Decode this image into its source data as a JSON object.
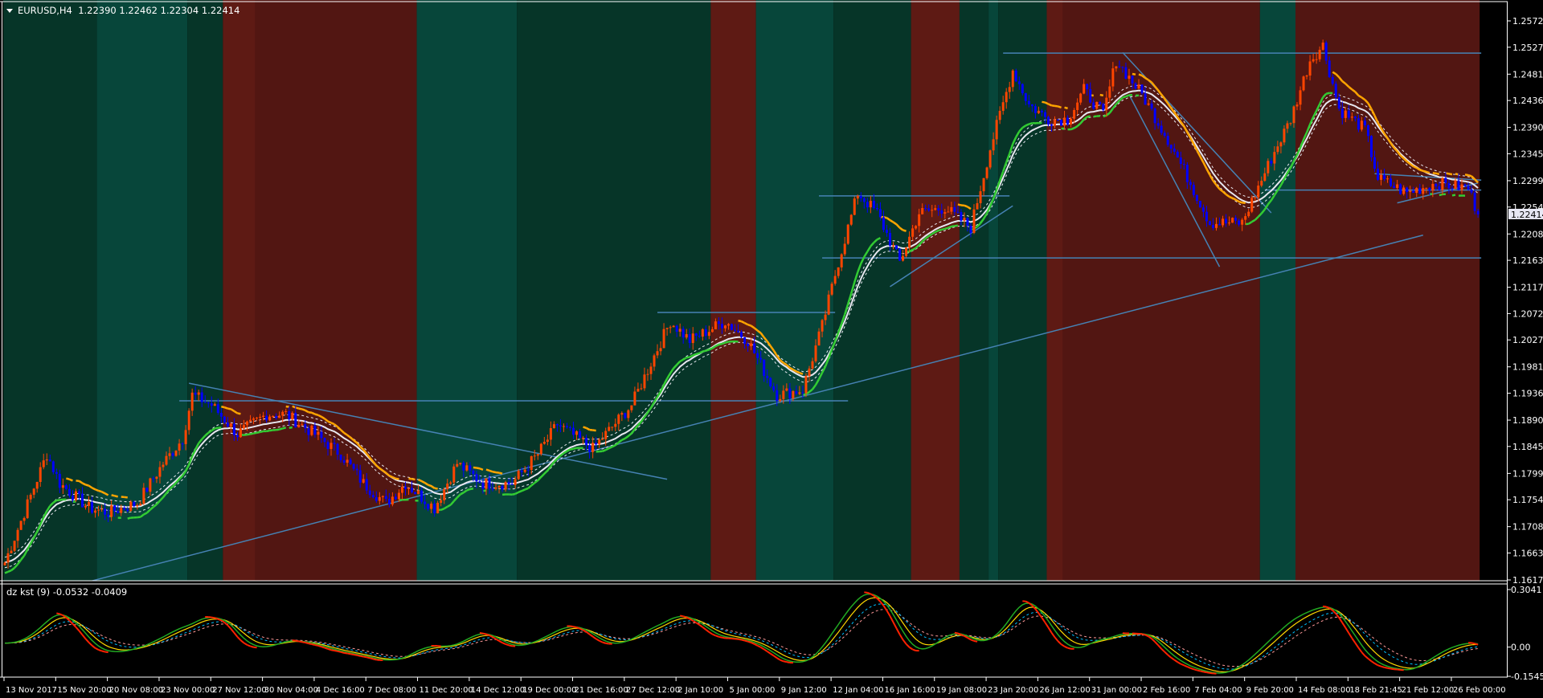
{
  "header": {
    "symbol_timeframe": "EURUSD,H4",
    "open": "1.22390",
    "high": "1.22462",
    "low": "1.22304",
    "close": "1.22414"
  },
  "indicator": {
    "name": "dz kst (9)",
    "value1": "-0.0532",
    "value2": "-0.0409",
    "axis_labels": [
      "0.3041",
      "0.00",
      "-0.1545"
    ],
    "ylim": [
      -0.1545,
      0.3041
    ]
  },
  "colors": {
    "bull_candle": "#ff4500",
    "bear_candle": "#0000ff",
    "bull_zone": "#07463a",
    "neutral_zone": "#063528",
    "bear_zone": "#5e1a14",
    "bear_zone_dark": "#521612",
    "trendline": "#4682b4",
    "ma": "#e8e8f0",
    "trail_up": "#33cc33",
    "trail_down": "#ffa500",
    "kst_green": "#22aa22",
    "kst_yellow": "#ffd700",
    "kst_red": "#ff2200",
    "kst_signal1": "#00bfff",
    "kst_signal2": "#ff9999"
  },
  "chart_data": {
    "type": "candlestick",
    "symbol": "EURUSD",
    "timeframe": "H4",
    "ylim": [
      1.1617,
      1.2572
    ],
    "price_labels": [
      "1.25720",
      "1.25270",
      "1.24810",
      "1.24360",
      "1.23900",
      "1.23450",
      "1.22990",
      "1.22540",
      "1.22080",
      "1.21630",
      "1.21170",
      "1.20720",
      "1.20270",
      "1.19810",
      "1.19360",
      "1.18900",
      "1.18450",
      "1.17990",
      "1.17540",
      "1.17080",
      "1.16630",
      "1.16170"
    ],
    "current_price": "1.22414",
    "time_labels": [
      "13 Nov 2017",
      "15 Nov 20:00",
      "20 Nov 08:00",
      "23 Nov 00:00",
      "27 Nov 12:00",
      "30 Nov 04:00",
      "4 Dec 16:00",
      "7 Dec 08:00",
      "11 Dec 20:00",
      "14 Dec 12:00",
      "19 Dec 00:00",
      "21 Dec 16:00",
      "27 Dec 12:00",
      "2 Jan 10:00",
      "5 Jan 00:00",
      "9 Jan 12:00",
      "12 Jan 04:00",
      "16 Jan 16:00",
      "19 Jan 08:00",
      "23 Jan 20:00",
      "26 Jan 12:00",
      "31 Jan 00:00",
      "2 Feb 16:00",
      "7 Feb 04:00",
      "9 Feb 20:00",
      "14 Feb 08:00",
      "18 Feb 21:45",
      "21 Feb 12:00",
      "26 Feb 00:00"
    ],
    "bars_per_time_label": 16,
    "close_anchors": [
      [
        0,
        1.1647
      ],
      [
        6,
        1.1732
      ],
      [
        13,
        1.1832
      ],
      [
        17,
        1.1782
      ],
      [
        26,
        1.174
      ],
      [
        32,
        1.1732
      ],
      [
        41,
        1.1748
      ],
      [
        49,
        1.1816
      ],
      [
        55,
        1.1858
      ],
      [
        58,
        1.1933
      ],
      [
        64,
        1.1916
      ],
      [
        72,
        1.1866
      ],
      [
        81,
        1.19
      ],
      [
        87,
        1.19
      ],
      [
        96,
        1.1866
      ],
      [
        104,
        1.1832
      ],
      [
        111,
        1.1782
      ],
      [
        118,
        1.1748
      ],
      [
        124,
        1.1782
      ],
      [
        133,
        1.174
      ],
      [
        140,
        1.1816
      ],
      [
        148,
        1.1782
      ],
      [
        157,
        1.1782
      ],
      [
        165,
        1.1832
      ],
      [
        171,
        1.1883
      ],
      [
        182,
        1.1841
      ],
      [
        194,
        1.1916
      ],
      [
        201,
        1.2
      ],
      [
        206,
        1.2059
      ],
      [
        212,
        1.2026
      ],
      [
        223,
        1.2059
      ],
      [
        230,
        1.2026
      ],
      [
        239,
        1.1933
      ],
      [
        247,
        1.1942
      ],
      [
        253,
        1.2051
      ],
      [
        258,
        1.216
      ],
      [
        264,
        1.2278
      ],
      [
        270,
        1.2244
      ],
      [
        277,
        1.216
      ],
      [
        283,
        1.2244
      ],
      [
        291,
        1.2253
      ],
      [
        299,
        1.2219
      ],
      [
        305,
        1.2354
      ],
      [
        312,
        1.2488
      ],
      [
        317,
        1.2429
      ],
      [
        323,
        1.2404
      ],
      [
        329,
        1.2404
      ],
      [
        334,
        1.2454
      ],
      [
        340,
        1.2412
      ],
      [
        344,
        1.2505
      ],
      [
        352,
        1.2446
      ],
      [
        360,
        1.237
      ],
      [
        367,
        1.2295
      ],
      [
        373,
        1.2227
      ],
      [
        383,
        1.2227
      ],
      [
        392,
        1.2337
      ],
      [
        398,
        1.2404
      ],
      [
        404,
        1.2505
      ],
      [
        408,
        1.253
      ],
      [
        413,
        1.2421
      ],
      [
        421,
        1.2387
      ],
      [
        425,
        1.2303
      ],
      [
        434,
        1.2278
      ],
      [
        443,
        1.2295
      ],
      [
        453,
        1.2286
      ],
      [
        456,
        1.22414
      ]
    ],
    "zones": [
      {
        "from": 0,
        "to": 29,
        "state": "neutral"
      },
      {
        "from": 29,
        "to": 57,
        "state": "bull"
      },
      {
        "from": 57,
        "to": 68,
        "state": "neutral"
      },
      {
        "from": 68,
        "to": 78,
        "state": "bear"
      },
      {
        "from": 78,
        "to": 128,
        "state": "bear_dark"
      },
      {
        "from": 128,
        "to": 159,
        "state": "bull"
      },
      {
        "from": 159,
        "to": 219,
        "state": "neutral"
      },
      {
        "from": 219,
        "to": 233,
        "state": "bear"
      },
      {
        "from": 233,
        "to": 257,
        "state": "bull"
      },
      {
        "from": 257,
        "to": 281,
        "state": "neutral"
      },
      {
        "from": 281,
        "to": 296,
        "state": "bear"
      },
      {
        "from": 296,
        "to": 305,
        "state": "neutral"
      },
      {
        "from": 305,
        "to": 308,
        "state": "bull"
      },
      {
        "from": 308,
        "to": 323,
        "state": "neutral"
      },
      {
        "from": 323,
        "to": 328,
        "state": "bear"
      },
      {
        "from": 328,
        "to": 389,
        "state": "bear_dark"
      },
      {
        "from": 389,
        "to": 400,
        "state": "bull"
      },
      {
        "from": 400,
        "to": 457,
        "state": "bear_dark"
      }
    ],
    "trendlines": [
      [
        [
          26,
          1.1614
        ],
        [
          439,
          1.2206
        ]
      ],
      [
        [
          54,
          1.1923
        ],
        [
          261,
          1.1923
        ]
      ],
      [
        [
          57,
          1.1953
        ],
        [
          205,
          1.1789
        ]
      ],
      [
        [
          202,
          1.2074
        ],
        [
          257,
          1.2074
        ]
      ],
      [
        [
          252,
          1.2273
        ],
        [
          311,
          1.2273
        ]
      ],
      [
        [
          253,
          1.2167
        ],
        [
          457,
          1.2167
        ]
      ],
      [
        [
          309,
          1.2517
        ],
        [
          457,
          1.2517
        ]
      ],
      [
        [
          274,
          1.2118
        ],
        [
          312,
          1.2256
        ]
      ],
      [
        [
          346,
          1.2518
        ],
        [
          392,
          1.2244
        ]
      ],
      [
        [
          348,
          1.2446
        ],
        [
          376,
          1.2152
        ]
      ],
      [
        [
          390,
          1.2283
        ],
        [
          457,
          1.2283
        ]
      ],
      [
        [
          424,
          1.2311
        ],
        [
          457,
          1.23
        ]
      ],
      [
        [
          431,
          1.2261
        ],
        [
          456,
          1.2295
        ]
      ]
    ]
  }
}
